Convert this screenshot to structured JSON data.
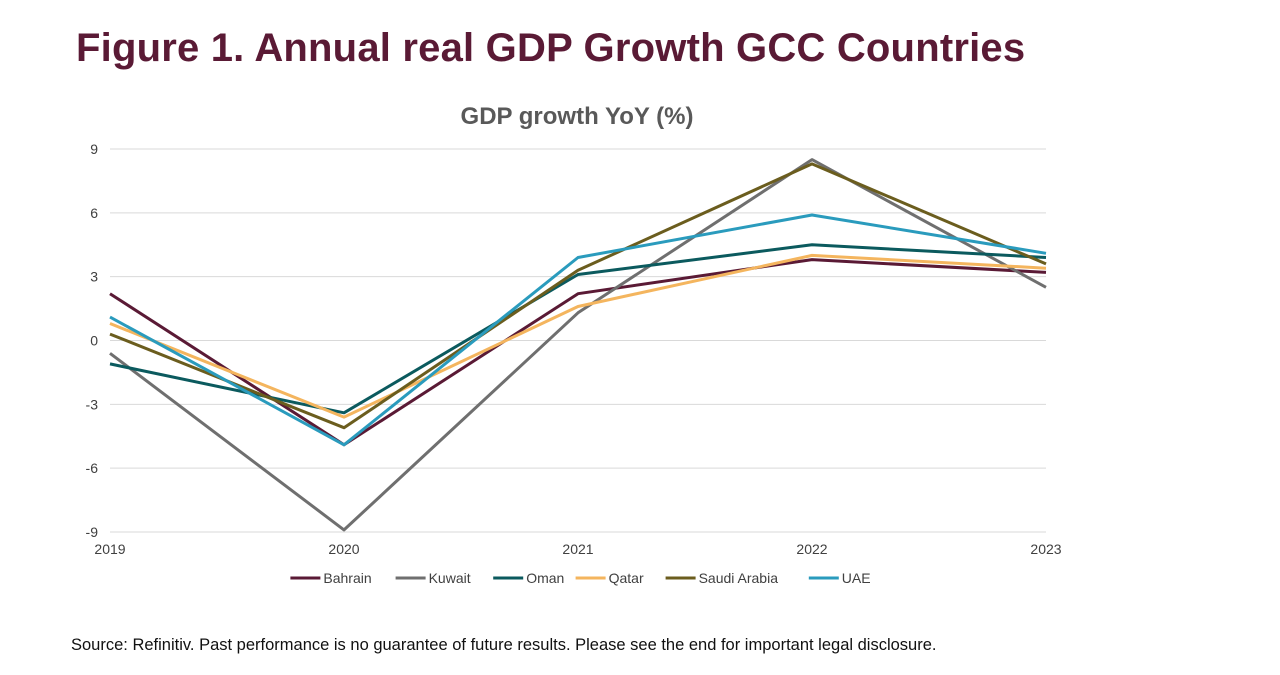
{
  "page": {
    "figure_title": "Figure 1. Annual real GDP Growth GCC Countries",
    "source_note": "Source: Refinitiv. Past performance is no guarantee of future results. Please see the end for important legal disclosure."
  },
  "colors": {
    "title": "#5a1a35",
    "chart_title": "#595959",
    "axis_text": "#404040",
    "gridline": "#d9d9d9"
  },
  "chart_data": {
    "type": "line",
    "title": "GDP growth YoY (%)",
    "xlabel": "",
    "ylabel": "",
    "x": [
      "2019",
      "2020",
      "2021",
      "2022",
      "2023"
    ],
    "ylim": [
      -9,
      9
    ],
    "yticks": [
      9,
      6,
      3,
      0,
      -3,
      -6,
      -9
    ],
    "grid": true,
    "legend_position": "bottom",
    "series": [
      {
        "name": "Bahrain",
        "color": "#5a1a35",
        "values": [
          2.2,
          -4.9,
          2.2,
          3.8,
          3.2
        ]
      },
      {
        "name": "Kuwait",
        "color": "#6f6f6f",
        "values": [
          -0.6,
          -8.9,
          1.3,
          8.5,
          2.5
        ]
      },
      {
        "name": "Oman",
        "color": "#0b5a5e",
        "values": [
          -1.1,
          -3.4,
          3.1,
          4.5,
          3.9
        ]
      },
      {
        "name": "Qatar",
        "color": "#f4b55e",
        "values": [
          0.8,
          -3.6,
          1.6,
          4.0,
          3.4
        ]
      },
      {
        "name": "Saudi Arabia",
        "color": "#6b5d1e",
        "values": [
          0.3,
          -4.1,
          3.3,
          8.3,
          3.6
        ]
      },
      {
        "name": "UAE",
        "color": "#2a9bbd",
        "values": [
          1.1,
          -4.9,
          3.9,
          5.9,
          4.1
        ]
      }
    ]
  }
}
